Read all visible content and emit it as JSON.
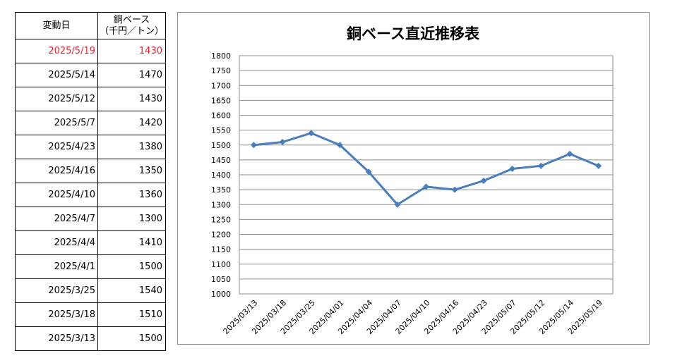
{
  "table": {
    "header_date": "変動日",
    "header_price_line1": "銅ベース",
    "header_price_line2": "（千円／トン）",
    "rows": [
      {
        "date": "2025/5/19",
        "price": "1430"
      },
      {
        "date": "2025/5/14",
        "price": "1470"
      },
      {
        "date": "2025/5/12",
        "price": "1430"
      },
      {
        "date": "2025/5/7",
        "price": "1420"
      },
      {
        "date": "2025/4/23",
        "price": "1380"
      },
      {
        "date": "2025/4/16",
        "price": "1350"
      },
      {
        "date": "2025/4/10",
        "price": "1360"
      },
      {
        "date": "2025/4/7",
        "price": "1300"
      },
      {
        "date": "2025/4/4",
        "price": "1410"
      },
      {
        "date": "2025/4/1",
        "price": "1500"
      },
      {
        "date": "2025/3/25",
        "price": "1540"
      },
      {
        "date": "2025/3/18",
        "price": "1510"
      },
      {
        "date": "2025/3/13",
        "price": "1500"
      }
    ],
    "highlight_color": "#e3242b"
  },
  "chart_data": {
    "type": "line",
    "title": "銅ベース直近推移表",
    "xlabel": "",
    "ylabel": "",
    "categories": [
      "2025/03/13",
      "2025/03/18",
      "2025/03/25",
      "2025/04/01",
      "2025/04/04",
      "2025/04/07",
      "2025/04/10",
      "2025/04/16",
      "2025/04/23",
      "2025/05/07",
      "2025/05/12",
      "2025/05/14",
      "2025/05/19"
    ],
    "series": [
      {
        "values": [
          1500,
          1510,
          1540,
          1500,
          1410,
          1300,
          1360,
          1350,
          1380,
          1420,
          1430,
          1470,
          1430
        ],
        "color": "#4a7ebb"
      }
    ],
    "ylim": [
      1000,
      1800
    ],
    "ytick_step": 50,
    "grid": "horizontal",
    "legend": "none",
    "marker": "diamond"
  }
}
